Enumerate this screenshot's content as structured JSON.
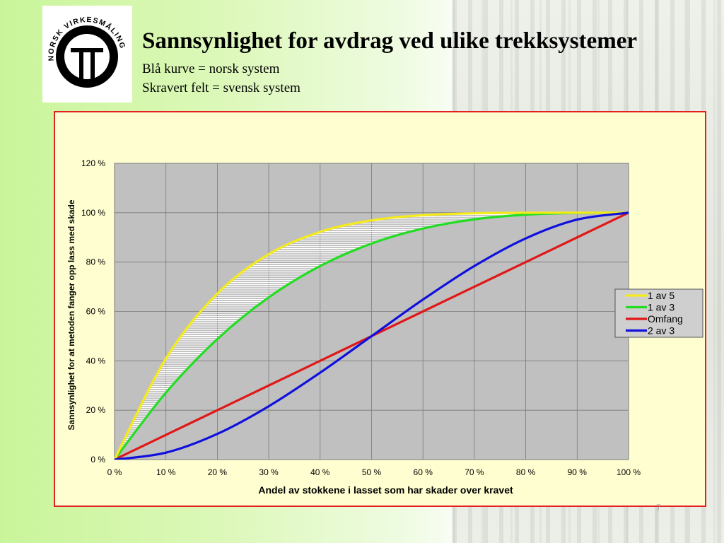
{
  "slide": {
    "title": "Sannsynlighet for avdrag ved ulike trekksystemer",
    "subtitle_lines": [
      "Blå kurve = norsk system",
      "Skravert felt = svensk system"
    ],
    "page_number": "7",
    "logo_text": "NORSK VIRKESMÅLING"
  },
  "colors": {
    "plot_background": "#c0c0c0",
    "chart_background": "#fefed0",
    "frame_border": "#e41f1f",
    "hatch": "#ffffff"
  },
  "chart_data": {
    "type": "line",
    "title": "",
    "xlabel": "Andel av stokkene i lasset som har skader over kravet",
    "ylabel": "Sannsynlighet for at metoden fanger opp lass med skade",
    "x": [
      0,
      10,
      20,
      30,
      40,
      50,
      60,
      70,
      80,
      90,
      100
    ],
    "xlim": [
      0,
      100
    ],
    "ylim": [
      0,
      120
    ],
    "x_ticks": [
      "0 %",
      "10 %",
      "20 %",
      "30 %",
      "40 %",
      "50 %",
      "60 %",
      "70 %",
      "80 %",
      "90 %",
      "100 %"
    ],
    "y_ticks": [
      "0 %",
      "20 %",
      "40 %",
      "60 %",
      "80 %",
      "100 %",
      "120 %"
    ],
    "grid": true,
    "legend_position": "right",
    "hatched_region": {
      "between": [
        "1 av 5",
        "1 av 3"
      ]
    },
    "series": [
      {
        "name": "1 av 5",
        "color": "#f5eb1a",
        "values": [
          0,
          40.95,
          67.23,
          83.19,
          92.22,
          96.88,
          98.98,
          99.76,
          99.97,
          100,
          100
        ]
      },
      {
        "name": "1 av 3",
        "color": "#22dd22",
        "values": [
          0,
          27.1,
          48.8,
          65.7,
          78.4,
          87.5,
          93.6,
          97.3,
          99.2,
          99.9,
          100
        ]
      },
      {
        "name": "Omfang",
        "color": "#e01818",
        "values": [
          0,
          10,
          20,
          30,
          40,
          50,
          60,
          70,
          80,
          90,
          100
        ]
      },
      {
        "name": "2 av 3",
        "color": "#1010dd",
        "values": [
          0,
          2.8,
          10.4,
          21.6,
          35.2,
          50,
          64.8,
          78.4,
          89.6,
          97.2,
          100
        ]
      }
    ]
  }
}
